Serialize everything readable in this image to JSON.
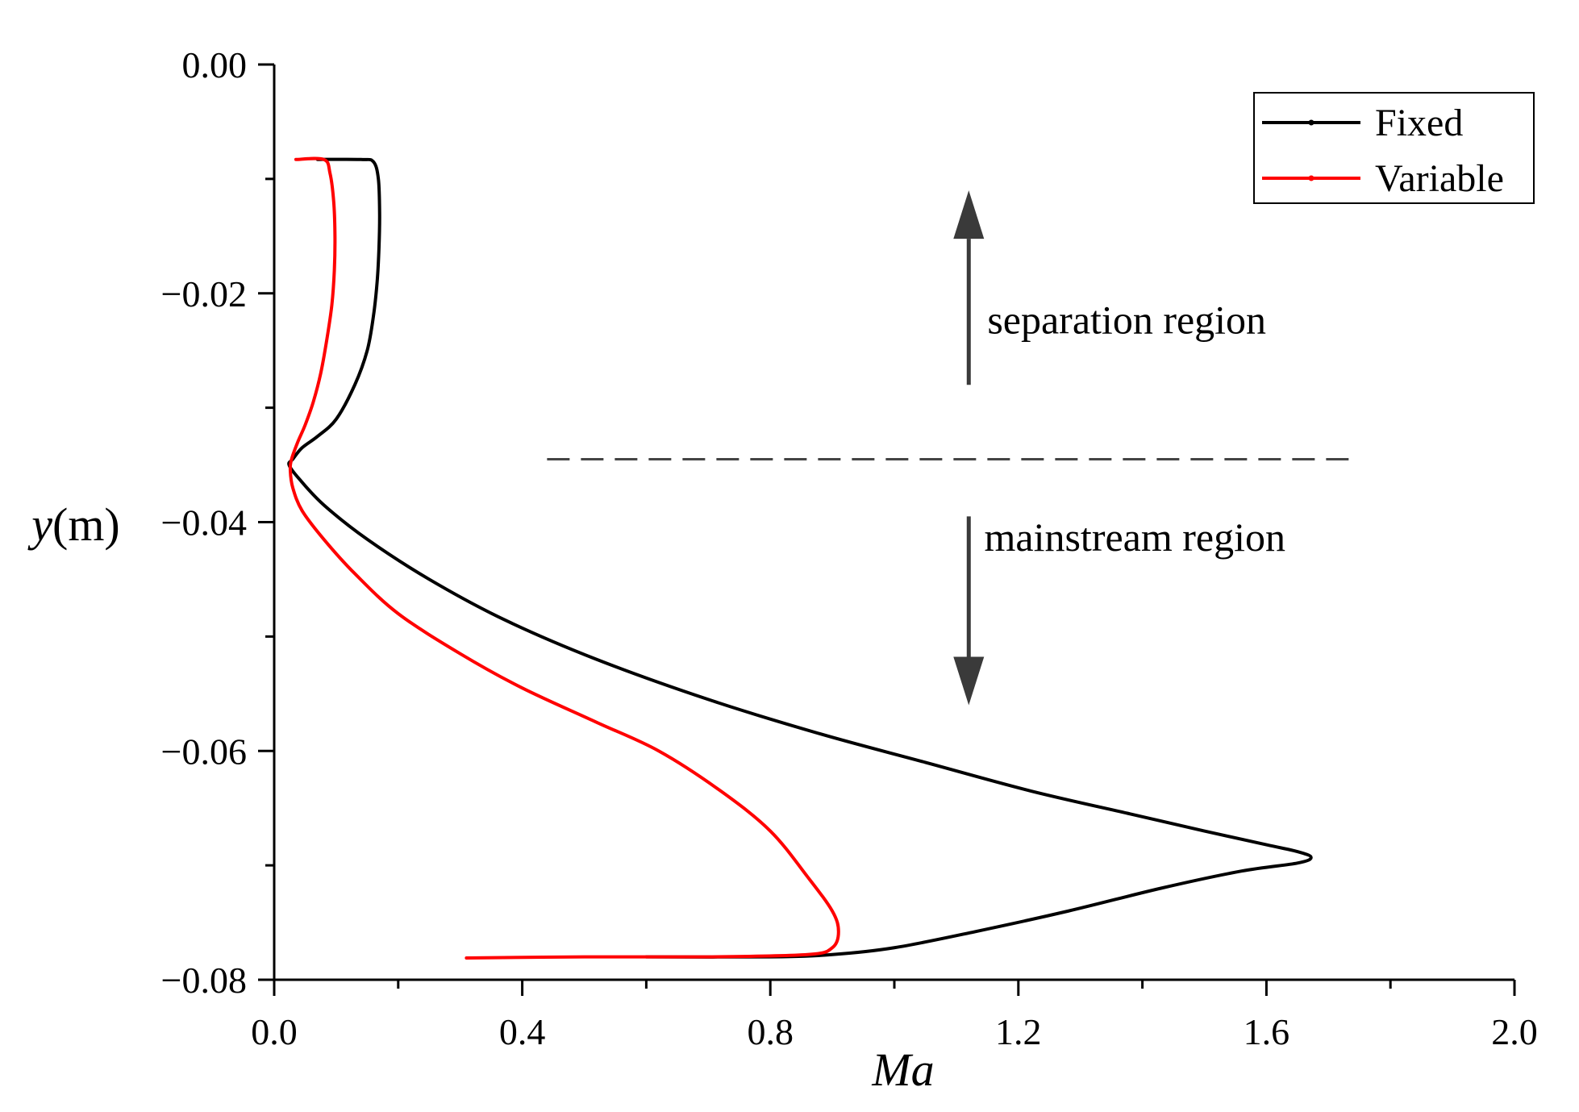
{
  "chart_data": {
    "type": "line",
    "title": "",
    "xlabel": "Ma",
    "ylabel_var": "y",
    "ylabel_unit": "(m)",
    "xlim": [
      0.0,
      2.0
    ],
    "ylim": [
      -0.08,
      0.0
    ],
    "x_ticks": [
      0.0,
      0.4,
      0.8,
      1.2,
      1.6,
      2.0
    ],
    "x_tick_labels": [
      "0.0",
      "0.4",
      "0.8",
      "1.2",
      "1.6",
      "2.0"
    ],
    "x_minor_ticks": [
      0.2,
      0.6,
      1.0,
      1.4,
      1.8
    ],
    "y_ticks": [
      0.0,
      -0.02,
      -0.04,
      -0.06,
      -0.08
    ],
    "y_tick_labels": [
      "0.00",
      "−0.02",
      "−0.04",
      "−0.06",
      "−0.08"
    ],
    "y_minor_ticks": [
      -0.01,
      -0.03,
      -0.05,
      -0.07
    ],
    "grid": false,
    "legend_position": "top-right",
    "series": [
      {
        "name": "Fixed",
        "color": "#000000",
        "points": [
          [
            0.07,
            -0.0083
          ],
          [
            0.14,
            -0.0083
          ],
          [
            0.16,
            -0.0085
          ],
          [
            0.168,
            -0.01
          ],
          [
            0.17,
            -0.013
          ],
          [
            0.169,
            -0.016
          ],
          [
            0.166,
            -0.019
          ],
          [
            0.16,
            -0.022
          ],
          [
            0.15,
            -0.025
          ],
          [
            0.13,
            -0.028
          ],
          [
            0.1,
            -0.031
          ],
          [
            0.07,
            -0.0325
          ],
          [
            0.045,
            -0.0335
          ],
          [
            0.03,
            -0.0345
          ],
          [
            0.024,
            -0.035
          ],
          [
            0.04,
            -0.0362
          ],
          [
            0.08,
            -0.0385
          ],
          [
            0.15,
            -0.0415
          ],
          [
            0.25,
            -0.045
          ],
          [
            0.37,
            -0.0485
          ],
          [
            0.52,
            -0.052
          ],
          [
            0.7,
            -0.0555
          ],
          [
            0.88,
            -0.0585
          ],
          [
            1.05,
            -0.061
          ],
          [
            1.22,
            -0.0635
          ],
          [
            1.38,
            -0.0655
          ],
          [
            1.5,
            -0.067
          ],
          [
            1.6,
            -0.0682
          ],
          [
            1.65,
            -0.0688
          ],
          [
            1.672,
            -0.0693
          ],
          [
            1.65,
            -0.0698
          ],
          [
            1.56,
            -0.0705
          ],
          [
            1.43,
            -0.072
          ],
          [
            1.28,
            -0.074
          ],
          [
            1.13,
            -0.0758
          ],
          [
            1.0,
            -0.0772
          ],
          [
            0.9,
            -0.0778
          ],
          [
            0.8,
            -0.078
          ],
          [
            0.6,
            -0.078
          ]
        ]
      },
      {
        "name": "Variable",
        "color": "#ff0000",
        "points": [
          [
            0.035,
            -0.0083
          ],
          [
            0.08,
            -0.0083
          ],
          [
            0.09,
            -0.0095
          ],
          [
            0.096,
            -0.012
          ],
          [
            0.098,
            -0.015
          ],
          [
            0.097,
            -0.018
          ],
          [
            0.093,
            -0.021
          ],
          [
            0.085,
            -0.024
          ],
          [
            0.075,
            -0.027
          ],
          [
            0.063,
            -0.0295
          ],
          [
            0.05,
            -0.0315
          ],
          [
            0.038,
            -0.033
          ],
          [
            0.028,
            -0.0345
          ],
          [
            0.026,
            -0.0355
          ],
          [
            0.03,
            -0.037
          ],
          [
            0.045,
            -0.039
          ],
          [
            0.08,
            -0.0415
          ],
          [
            0.13,
            -0.0445
          ],
          [
            0.2,
            -0.048
          ],
          [
            0.3,
            -0.0515
          ],
          [
            0.4,
            -0.0545
          ],
          [
            0.52,
            -0.0575
          ],
          [
            0.62,
            -0.06
          ],
          [
            0.72,
            -0.0635
          ],
          [
            0.8,
            -0.067
          ],
          [
            0.86,
            -0.071
          ],
          [
            0.9,
            -0.074
          ],
          [
            0.91,
            -0.0758
          ],
          [
            0.9,
            -0.0772
          ],
          [
            0.86,
            -0.0778
          ],
          [
            0.7,
            -0.078
          ],
          [
            0.5,
            -0.078
          ],
          [
            0.31,
            -0.0781
          ]
        ]
      }
    ],
    "divider": {
      "y": -0.0345,
      "x_start": 0.44,
      "x_end": 1.75,
      "style": "dashed"
    },
    "annotations": [
      {
        "id": "separation",
        "text": "separation region",
        "arrow": "up",
        "arrow_x": 1.12,
        "arrow_y_from": -0.028,
        "arrow_y_to": -0.011,
        "text_x": 1.15,
        "text_y": -0.0235
      },
      {
        "id": "mainstream",
        "text": "mainstream region",
        "arrow": "down",
        "arrow_x": 1.12,
        "arrow_y_from": -0.0395,
        "arrow_y_to": -0.056,
        "text_x": 1.145,
        "text_y": -0.0425
      }
    ],
    "colors": {
      "axis": "#000000",
      "divider": "#444444",
      "arrow": "#3a3a3a"
    }
  }
}
